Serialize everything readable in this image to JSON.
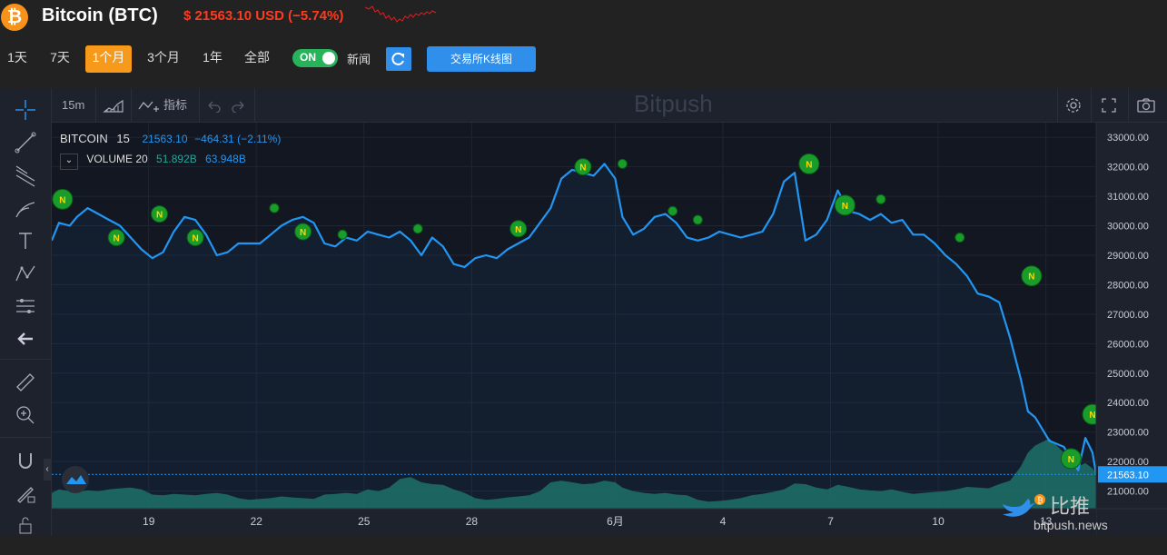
{
  "header": {
    "logo_symbol": "₿",
    "title": "Bitcoin (BTC)",
    "price_text": "$ 21563.10 USD (−5.74%)"
  },
  "ranges": [
    {
      "label": "1天",
      "active": false
    },
    {
      "label": "7天",
      "active": false
    },
    {
      "label": "1个月",
      "active": true
    },
    {
      "label": "3个月",
      "active": false
    },
    {
      "label": "1年",
      "active": false
    },
    {
      "label": "全部",
      "active": false
    }
  ],
  "news_toggle": {
    "state": "ON",
    "label": "新闻"
  },
  "kline_button": "交易所K线图",
  "toolbar": {
    "interval": "15m",
    "indicators": "指标",
    "watermark": "Bitpush"
  },
  "legend": {
    "symbol": "BITCOIN",
    "interval": "15",
    "value": "21563.10",
    "change": "−464.31 (−2.11%)",
    "volume_label": "VOLUME 20",
    "volume_1": "51.892B",
    "volume_2": "63.948B"
  },
  "brand": {
    "name_cn": "比推",
    "url": "bitpush.news"
  },
  "colors": {
    "line": "#2196f3",
    "volume_fill": "#1f6e62",
    "marker": "#1a9c2a",
    "price_label_bg": "#2196f3",
    "orange": "#f79a1c",
    "red": "#ff3b1f"
  },
  "chart_data": {
    "type": "line",
    "title": "",
    "ylim": [
      20400,
      33500
    ],
    "y_ticks": [
      33000,
      32000,
      31000,
      30000,
      29000,
      28000,
      27000,
      26000,
      25000,
      24000,
      23000,
      22000,
      21000
    ],
    "y_tick_labels": [
      "33000.00",
      "32000.00",
      "31000.00",
      "30000.00",
      "29000.00",
      "28000.00",
      "27000.00",
      "26000.00",
      "25000.00",
      "24000.00",
      "23000.00",
      "22000.00",
      "21000.00"
    ],
    "x_ticks": [
      {
        "label": "19",
        "t": 19
      },
      {
        "label": "22",
        "t": 22
      },
      {
        "label": "25",
        "t": 25
      },
      {
        "label": "28",
        "t": 28
      },
      {
        "label": "6月",
        "t": 32
      },
      {
        "label": "4",
        "t": 35
      },
      {
        "label": "7",
        "t": 38
      },
      {
        "label": "10",
        "t": 41
      },
      {
        "label": "13",
        "t": 44
      }
    ],
    "x_range": [
      16.3,
      45.4
    ],
    "current_price": 21563.1,
    "series": [
      {
        "x": [
          16.3,
          16.5,
          16.8,
          17.0,
          17.3,
          17.6,
          17.9,
          18.2,
          18.5,
          18.8,
          19.1,
          19.4,
          19.7,
          20.0,
          20.3,
          20.6,
          20.9,
          21.2,
          21.5,
          21.8,
          22.1,
          22.4,
          22.7,
          23.0,
          23.3,
          23.6,
          23.9,
          24.2,
          24.5,
          24.8,
          25.1,
          25.4,
          25.7,
          26.0,
          26.3,
          26.6,
          26.9,
          27.2,
          27.5,
          27.8,
          28.1,
          28.4,
          28.7,
          29.0,
          29.3,
          29.6,
          29.9,
          30.2,
          30.5,
          30.8,
          31.1,
          31.4,
          31.7,
          32.0,
          32.2,
          32.5,
          32.8,
          33.1,
          33.4,
          33.7,
          34.0,
          34.3,
          34.6,
          34.9,
          35.2,
          35.5,
          35.8,
          36.1,
          36.4,
          36.7,
          37.0,
          37.3,
          37.6,
          37.9,
          38.2,
          38.5,
          38.8,
          39.1,
          39.4,
          39.7,
          40.0,
          40.3,
          40.6,
          40.9,
          41.2,
          41.5,
          41.8,
          42.1,
          42.4,
          42.7,
          43.0,
          43.3,
          43.5,
          43.7,
          43.9,
          44.1,
          44.3,
          44.5,
          44.7,
          44.9,
          45.1,
          45.3,
          45.4
        ],
        "y": [
          29500,
          30100,
          30000,
          30300,
          30600,
          30400,
          30200,
          30000,
          29600,
          29200,
          28900,
          29100,
          29800,
          30300,
          30200,
          29700,
          29000,
          29100,
          29400,
          29400,
          29400,
          29700,
          30000,
          30200,
          30300,
          30100,
          29400,
          29300,
          29600,
          29500,
          29800,
          29700,
          29600,
          29800,
          29500,
          29000,
          29600,
          29300,
          28700,
          28600,
          28900,
          29000,
          28900,
          29200,
          29400,
          29600,
          30100,
          30600,
          31600,
          31900,
          31800,
          31700,
          32100,
          31600,
          30300,
          29700,
          29900,
          30300,
          30400,
          30100,
          29600,
          29500,
          29600,
          29800,
          29700,
          29600,
          29700,
          29800,
          30400,
          31500,
          31800,
          29500,
          29700,
          30200,
          31200,
          30500,
          30400,
          30200,
          30400,
          30100,
          30200,
          29700,
          29700,
          29400,
          29000,
          28700,
          28300,
          27700,
          27600,
          27400,
          26200,
          24800,
          23700,
          23500,
          23100,
          22700,
          22600,
          22500,
          22100,
          21700,
          22800,
          22300,
          21563
        ]
      }
    ],
    "volume": [
      0.45,
      0.55,
      0.5,
      0.48,
      0.52,
      0.5,
      0.55,
      0.58,
      0.6,
      0.55,
      0.4,
      0.38,
      0.42,
      0.4,
      0.38,
      0.42,
      0.45,
      0.4,
      0.3,
      0.25,
      0.28,
      0.3,
      0.35,
      0.32,
      0.3,
      0.28,
      0.4,
      0.42,
      0.45,
      0.42,
      0.55,
      0.5,
      0.6,
      0.85,
      0.9,
      0.75,
      0.7,
      0.68,
      0.55,
      0.45,
      0.3,
      0.25,
      0.28,
      0.32,
      0.35,
      0.38,
      0.5,
      0.75,
      0.8,
      0.75,
      0.7,
      0.72,
      0.8,
      0.75,
      0.6,
      0.5,
      0.45,
      0.42,
      0.45,
      0.4,
      0.38,
      0.25,
      0.2,
      0.22,
      0.25,
      0.3,
      0.38,
      0.42,
      0.48,
      0.55,
      0.72,
      0.7,
      0.6,
      0.55,
      0.68,
      0.62,
      0.55,
      0.52,
      0.5,
      0.55,
      0.48,
      0.42,
      0.45,
      0.48,
      0.5,
      0.55,
      0.62,
      0.6,
      0.58,
      0.7,
      0.8,
      1.2,
      1.6,
      1.8,
      1.9,
      2.0,
      1.8,
      1.6,
      1.4,
      1.2,
      1.3,
      1.15,
      1.0
    ],
    "news_markers": [
      {
        "t": 16.6,
        "price": 30900,
        "size": "large"
      },
      {
        "t": 18.1,
        "price": 29600,
        "size": "small"
      },
      {
        "t": 19.3,
        "price": 30400,
        "size": "small"
      },
      {
        "t": 20.3,
        "price": 29600,
        "size": "small"
      },
      {
        "t": 22.5,
        "price": 30600,
        "size": "dot"
      },
      {
        "t": 23.3,
        "price": 29800,
        "size": "small"
      },
      {
        "t": 24.4,
        "price": 29700,
        "size": "dot"
      },
      {
        "t": 26.5,
        "price": 29900,
        "size": "dot"
      },
      {
        "t": 29.3,
        "price": 29900,
        "size": "small"
      },
      {
        "t": 31.1,
        "price": 32000,
        "size": "small"
      },
      {
        "t": 32.2,
        "price": 32100,
        "size": "dot"
      },
      {
        "t": 33.6,
        "price": 30500,
        "size": "dot"
      },
      {
        "t": 34.3,
        "price": 30200,
        "size": "dot"
      },
      {
        "t": 37.4,
        "price": 32100,
        "size": "large"
      },
      {
        "t": 38.4,
        "price": 30700,
        "size": "large"
      },
      {
        "t": 39.4,
        "price": 30900,
        "size": "dot"
      },
      {
        "t": 41.6,
        "price": 29600,
        "size": "dot"
      },
      {
        "t": 43.6,
        "price": 28300,
        "size": "large"
      },
      {
        "t": 44.7,
        "price": 22100,
        "size": "large"
      },
      {
        "t": 45.3,
        "price": 23600,
        "size": "large"
      }
    ]
  }
}
